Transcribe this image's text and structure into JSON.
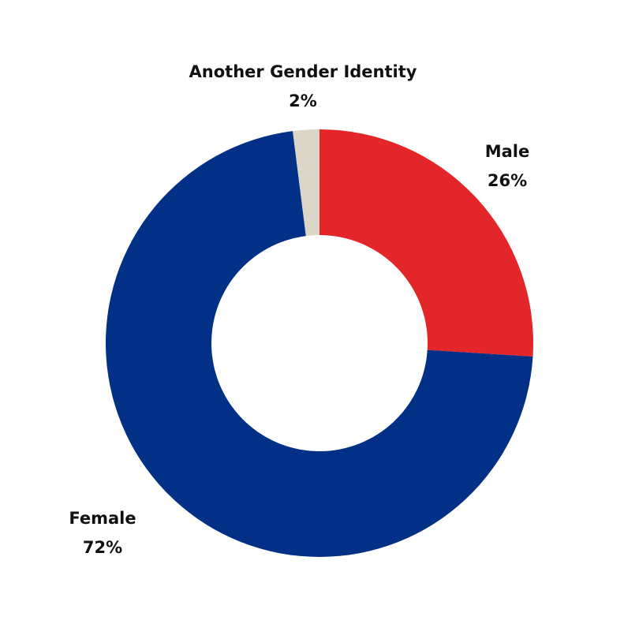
{
  "chart_data": {
    "type": "pie",
    "categories": [
      "Male",
      "Female",
      "Another Gender Identity"
    ],
    "values": [
      26,
      72,
      2
    ],
    "value_labels": [
      "26%",
      "72%",
      "2%"
    ],
    "colors": [
      "#e2262a",
      "#023087",
      "#dad6c8"
    ]
  }
}
